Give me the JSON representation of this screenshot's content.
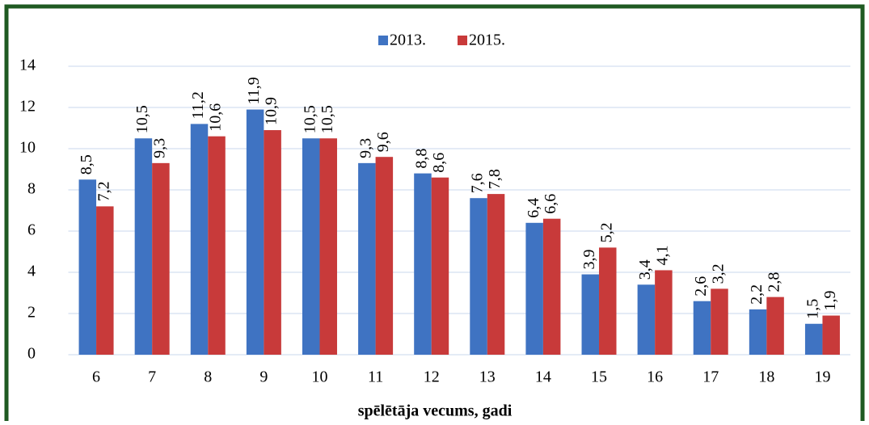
{
  "chart_data": {
    "type": "bar",
    "categories": [
      "6",
      "7",
      "8",
      "9",
      "10",
      "11",
      "12",
      "13",
      "14",
      "15",
      "16",
      "17",
      "18",
      "19"
    ],
    "series": [
      {
        "name": "2013.",
        "color": "#3f73c2",
        "values": [
          8.5,
          10.5,
          11.2,
          11.9,
          10.5,
          9.3,
          8.8,
          7.6,
          6.4,
          3.9,
          3.4,
          2.6,
          2.2,
          1.5
        ],
        "value_labels": [
          "8,5",
          "10,5",
          "11,2",
          "11,9",
          "10,5",
          "9,3",
          "8,8",
          "7,6",
          "6,4",
          "3,9",
          "3,4",
          "2,6",
          "2,2",
          "1,5"
        ]
      },
      {
        "name": "2015.",
        "color": "#c83a3a",
        "values": [
          7.2,
          9.3,
          10.6,
          10.9,
          10.5,
          9.6,
          8.6,
          7.8,
          6.6,
          5.2,
          4.1,
          3.2,
          2.8,
          1.9
        ],
        "value_labels": [
          "7,2",
          "9,3",
          "10,6",
          "10,9",
          "10,5",
          "9,6",
          "8,6",
          "7,8",
          "6,6",
          "5,2",
          "4,1",
          "3,2",
          "2,8",
          "1,9"
        ]
      }
    ],
    "xlabel": "spēlētāja vecums, gadi",
    "ylim": [
      0,
      14
    ],
    "yticks": [
      0,
      2,
      4,
      6,
      8,
      10,
      12,
      14
    ],
    "grid": true,
    "legend": "top"
  }
}
